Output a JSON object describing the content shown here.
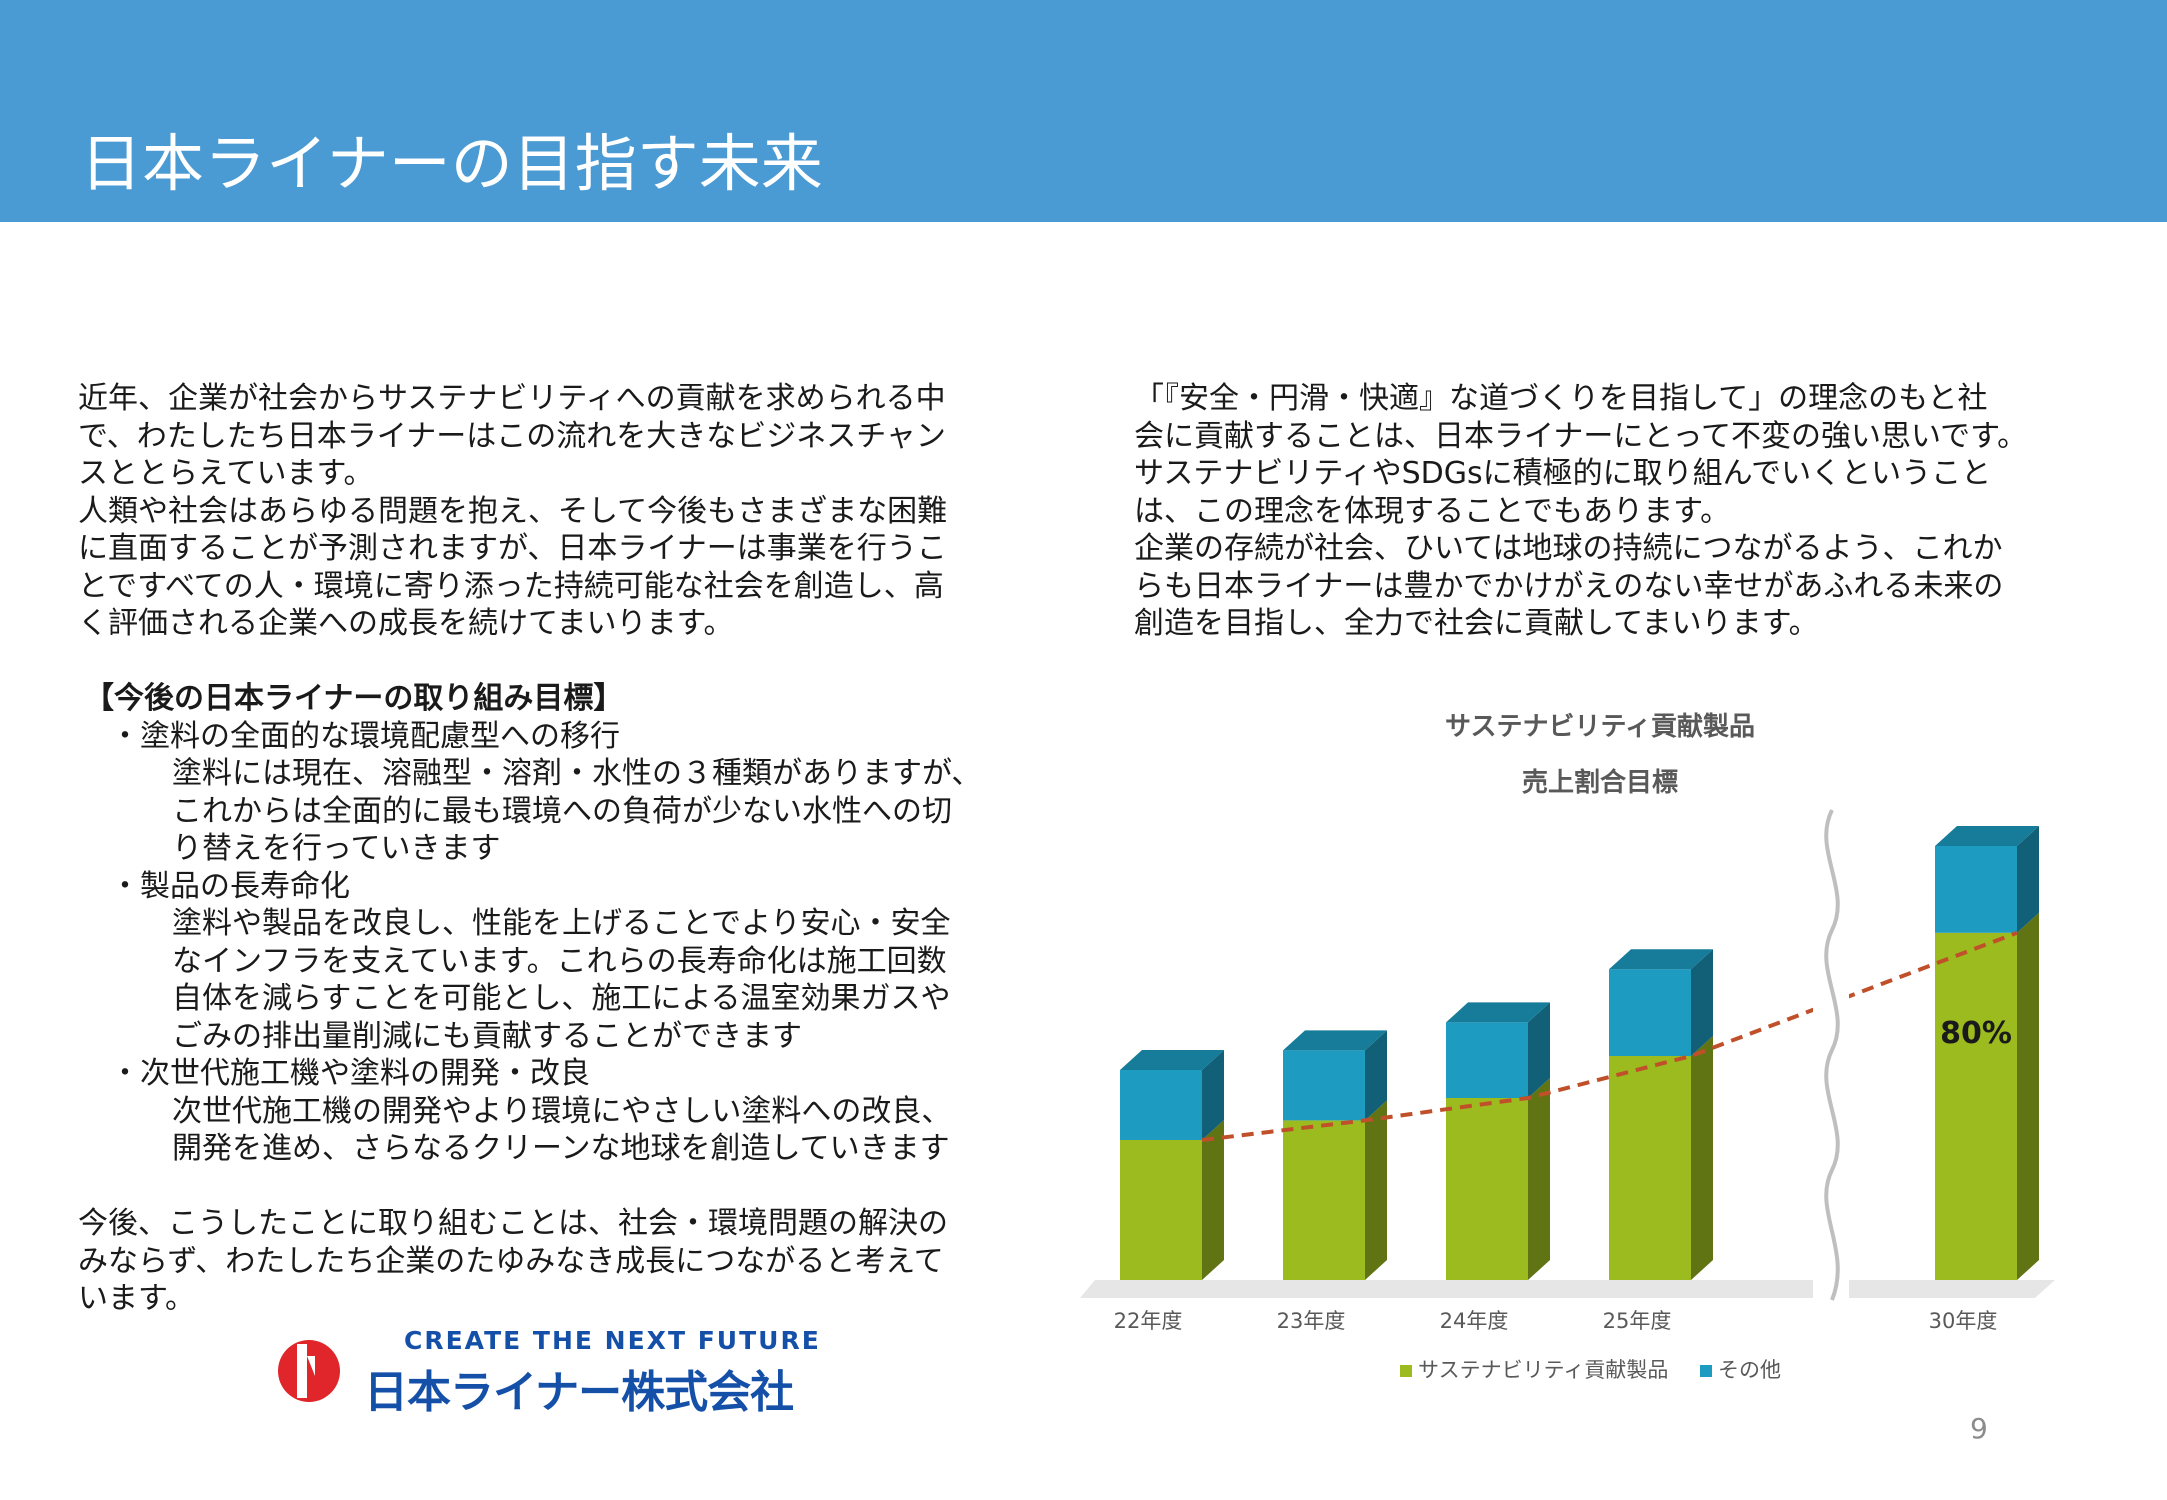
{
  "header": {
    "title": "日本ライナーの目指す未来"
  },
  "left": {
    "intro": [
      "近年、企業が社会からサステナビリティへの貢献を求められる中",
      "で、わたしたち日本ライナーはこの流れを大きなビジネスチャン",
      "スととらえています。",
      "人類や社会はあらゆる問題を抱え、そして今後もさまざまな困難",
      "に直面することが予測されますが、日本ライナーは事業を行うこ",
      "とですべての人・環境に寄り添った持続可能な社会を創造し、高",
      "く評価される企業への成長を続けてまいります。"
    ],
    "goals_title": "【今後の日本ライナーの取り組み目標】",
    "goals": [
      {
        "head": "・塗料の全面的な環境配慮型への移行",
        "body": [
          "塗料には現在、溶融型・溶剤・水性の３種類がありますが、",
          "これからは全面的に最も環境への負荷が少ない水性への切",
          "り替えを行っていきます"
        ]
      },
      {
        "head": "・製品の長寿命化",
        "body": [
          "塗料や製品を改良し、性能を上げることでより安心・安全",
          "なインフラを支えています。これらの長寿命化は施工回数",
          "自体を減らすことを可能とし、施工による温室効果ガスや",
          "ごみの排出量削減にも貢献することができます"
        ]
      },
      {
        "head": "・次世代施工機や塗料の開発・改良",
        "body": [
          "次世代施工機の開発やより環境にやさしい塗料への改良、",
          "開発を進め、さらなるクリーンな地球を創造していきます"
        ]
      }
    ],
    "closing": [
      "今後、こうしたことに取り組むことは、社会・環境問題の解決の",
      "みならず、わたしたち企業のたゆみなき成長につながると考えて",
      "います。"
    ]
  },
  "right": {
    "paragraph": [
      "「『安全・円滑・快適』な道づくりを目指して」の理念のもと社",
      "会に貢献することは、日本ライナーにとって不変の強い思いです。",
      "サステナビリティやSDGsに積極的に取り組んでいくということ",
      "は、この理念を体現することでもあります。",
      "企業の存続が社会、ひいては地球の持続につながるよう、これか",
      "らも日本ライナーは豊かでかけがえのない幸せがあふれる未来の",
      "創造を目指し、全力で社会に貢献してまいります。"
    ]
  },
  "logo": {
    "tagline": "CREATE THE NEXT FUTURE",
    "name": "日本ライナー株式会社",
    "colors": {
      "blue": "#1550a8",
      "red": "#e0262a"
    }
  },
  "page_number": "9",
  "chart_data": {
    "type": "bar",
    "stacked": true,
    "three_d": true,
    "title": "サステナビリティ貢献製品",
    "subtitle": "売上割合目標",
    "categories": [
      "22年度",
      "23年度",
      "24年度",
      "25年度",
      "30年度"
    ],
    "series": [
      {
        "name": "サステナビリティ貢献製品",
        "values": [
          50,
          57,
          65,
          80,
          124
        ],
        "color": "#9bbb1f"
      },
      {
        "name": "その他",
        "values": [
          25,
          25,
          27,
          31,
          31
        ],
        "color": "#1d9bc0"
      }
    ],
    "data_labels": [
      "",
      "",
      "",
      "",
      "80%"
    ],
    "axis_break_between": [
      "25年度",
      "30年度"
    ],
    "trend_line": {
      "series": "サステナビリティ貢献製品",
      "style": "dashed",
      "color": "#c0502a"
    },
    "legend_position": "bottom",
    "grid": false
  }
}
